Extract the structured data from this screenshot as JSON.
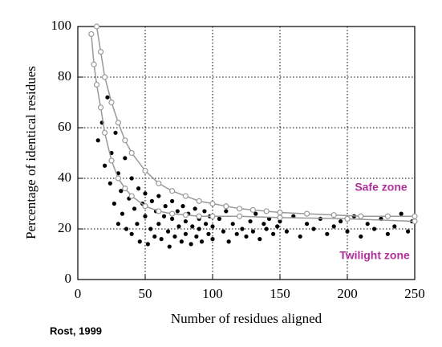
{
  "chart_data": {
    "type": "scatter",
    "x_label": "Number of residues aligned",
    "y_label": "Percentage of identical residues",
    "annotations": [
      {
        "text": "Safe zone",
        "color": "#b0309a"
      },
      {
        "text": "Twilight zone",
        "color": "#b0309a"
      }
    ],
    "credit": "Rost, 1999",
    "xlim": [
      0,
      250
    ],
    "ylim": [
      0,
      100
    ],
    "xticks": [
      0,
      50,
      100,
      150,
      200,
      250
    ],
    "yticks": [
      0,
      20,
      40,
      60,
      80,
      100
    ],
    "grid": true,
    "series": [
      {
        "type": "scatter",
        "color": "#000000",
        "x": [
          15,
          18,
          20,
          22,
          24,
          25,
          27,
          28,
          30,
          30,
          32,
          33,
          35,
          36,
          38,
          40,
          40,
          42,
          44,
          45,
          46,
          48,
          50,
          50,
          52,
          54,
          55,
          57,
          58,
          60,
          60,
          62,
          64,
          65,
          67,
          68,
          70,
          70,
          72,
          74,
          75,
          77,
          78,
          80,
          80,
          82,
          84,
          85,
          87,
          88,
          90,
          90,
          92,
          94,
          95,
          97,
          98,
          100,
          100,
          105,
          108,
          110,
          112,
          115,
          118,
          120,
          122,
          125,
          128,
          130,
          132,
          135,
          138,
          140,
          142,
          145,
          148,
          150,
          155,
          160,
          165,
          170,
          175,
          180,
          185,
          190,
          195,
          200,
          205,
          210,
          215,
          220,
          225,
          230,
          235,
          240,
          245,
          248
        ],
        "values": [
          55,
          62,
          45,
          72,
          38,
          50,
          30,
          58,
          42,
          22,
          35,
          26,
          48,
          20,
          32,
          40,
          18,
          28,
          22,
          36,
          15,
          30,
          25,
          34,
          14,
          20,
          31,
          17,
          27,
          22,
          33,
          16,
          25,
          29,
          19,
          13,
          24,
          31,
          17,
          27,
          21,
          15,
          29,
          23,
          18,
          26,
          14,
          21,
          28,
          17,
          24,
          20,
          15,
          27,
          22,
          18,
          25,
          21,
          16,
          24,
          19,
          27,
          15,
          22,
          18,
          25,
          20,
          17,
          23,
          19,
          26,
          16,
          22,
          20,
          24,
          18,
          21,
          23,
          19,
          25,
          17,
          22,
          20,
          24,
          18,
          21,
          23,
          19,
          25,
          17,
          22,
          20,
          24,
          18,
          21,
          26,
          19,
          23
        ]
      },
      {
        "type": "line",
        "color": "#999999",
        "x": [
          14,
          17,
          20,
          25,
          30,
          35,
          40,
          50,
          60,
          70,
          80,
          90,
          100,
          110,
          120,
          130,
          140,
          150,
          170,
          190,
          210,
          230,
          250
        ],
        "values": [
          100,
          90,
          80,
          70,
          62,
          55,
          50,
          43,
          38,
          35,
          33,
          31,
          30,
          29,
          28,
          27.5,
          27,
          26.5,
          26,
          25.5,
          25,
          25,
          25
        ]
      },
      {
        "type": "line",
        "color": "#999999",
        "x": [
          10,
          12,
          14,
          17,
          20,
          25,
          30,
          35,
          40,
          50,
          60,
          70,
          80,
          90,
          100,
          120,
          150,
          200,
          250
        ],
        "values": [
          97,
          85,
          77,
          68,
          58,
          47,
          40,
          36,
          33,
          29,
          27,
          26,
          25.5,
          25,
          25,
          25,
          24.5,
          24,
          23
        ]
      }
    ]
  }
}
